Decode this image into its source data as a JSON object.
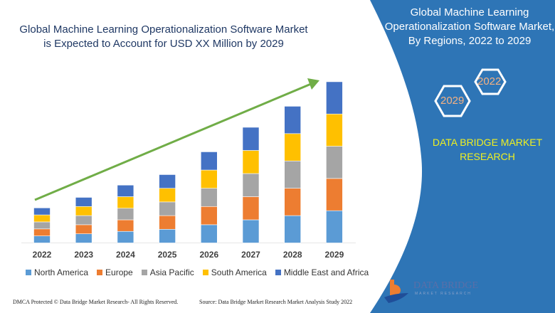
{
  "header": {
    "title": "Global Machine Learning Operationalization Software Market is Expected to Account for USD XX Million by 2029"
  },
  "side_panel": {
    "title": "Global Machine Learning Operationalization Software Market, By Regions, 2022 to 2029",
    "hex_top": "2022",
    "hex_bottom": "2029",
    "brand": "DATA BRIDGE MARKET RESEARCH",
    "logo_text": "DATA BRIDGE",
    "logo_sub": "MARKET RESEARCH",
    "panel_color": "#2e75b6"
  },
  "footer": {
    "left": "DMCA Protected © Data Bridge Market Research- All Rights Reserved.",
    "right": "Source: Data Bridge Market Research Market Analysis Study 2022"
  },
  "chart_data": {
    "type": "bar",
    "stacked": true,
    "title": "Global Machine Learning Operationalization Software Market is Expected to Account for USD XX Million by 2029",
    "xlabel": "",
    "ylabel": "",
    "categories": [
      "2022",
      "2023",
      "2024",
      "2025",
      "2026",
      "2027",
      "2028",
      "2029"
    ],
    "series": [
      {
        "name": "North America",
        "color": "#5b9bd5",
        "values": [
          10,
          13,
          16.5,
          19.5,
          26,
          33,
          39,
          46
        ]
      },
      {
        "name": "Europe",
        "color": "#ed7d31",
        "values": [
          10,
          13,
          16.5,
          19.5,
          26,
          33,
          39,
          46
        ]
      },
      {
        "name": "Asia Pacific",
        "color": "#a5a5a5",
        "values": [
          10,
          13,
          16.5,
          19.5,
          26,
          33,
          39,
          46
        ]
      },
      {
        "name": "South America",
        "color": "#ffc000",
        "values": [
          10,
          13,
          16.5,
          19.5,
          26,
          33,
          39,
          46
        ]
      },
      {
        "name": "Middle East and Africa",
        "color": "#4472c4",
        "values": [
          10,
          13,
          16.5,
          19.5,
          26,
          33,
          39,
          46
        ]
      }
    ],
    "ylim": [
      0,
      235
    ],
    "grid": false,
    "legend": "bottom",
    "trend_arrow_color": "#70ad47"
  }
}
